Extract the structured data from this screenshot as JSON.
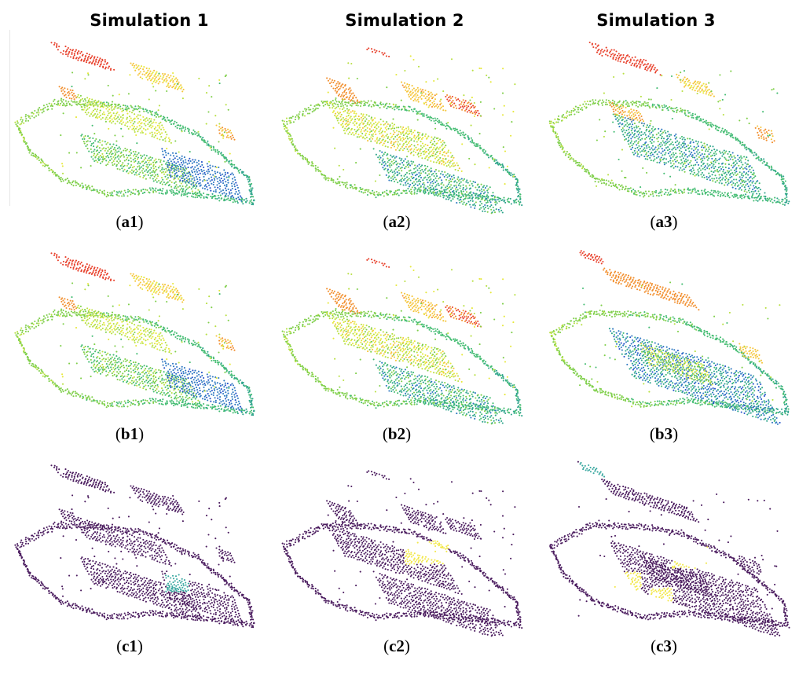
{
  "columns": [
    {
      "title": "Simulation 1"
    },
    {
      "title": "Simulation 2"
    },
    {
      "title": "Simulation 3"
    }
  ],
  "panels": [
    {
      "id": "a1",
      "caption": "a1",
      "row": "a",
      "col": 1,
      "palette": "spectral",
      "variant": 1,
      "highlight": "none"
    },
    {
      "id": "a2",
      "caption": "a2",
      "row": "a",
      "col": 2,
      "palette": "spectral",
      "variant": 2,
      "highlight": "none"
    },
    {
      "id": "a3",
      "caption": "a3",
      "row": "a",
      "col": 3,
      "palette": "spectral",
      "variant": 3,
      "highlight": "none"
    },
    {
      "id": "b1",
      "caption": "b1",
      "row": "b",
      "col": 1,
      "palette": "spectral",
      "variant": 1,
      "highlight": "none"
    },
    {
      "id": "b2",
      "caption": "b2",
      "row": "b",
      "col": 2,
      "palette": "spectral",
      "variant": 2,
      "highlight": "none"
    },
    {
      "id": "b3",
      "caption": "b3",
      "row": "b",
      "col": 3,
      "palette": "spectral",
      "variant": 4,
      "highlight": "none"
    },
    {
      "id": "c1",
      "caption": "c1",
      "row": "c",
      "col": 1,
      "palette": "purple",
      "variant": 1,
      "highlight": "cyan-small"
    },
    {
      "id": "c2",
      "caption": "c2",
      "row": "c",
      "col": 2,
      "palette": "purple",
      "variant": 2,
      "highlight": "yellow-patch"
    },
    {
      "id": "c3",
      "caption": "c3",
      "row": "c",
      "col": 3,
      "palette": "purple",
      "variant": 5,
      "highlight": "yellow-multi-cyan-top"
    }
  ],
  "colors": {
    "purple": "#4a1b5e",
    "cyan": "#3aa8a0",
    "yellow": "#f2e84a",
    "spectral_red": "#e8412c",
    "spectral_orange": "#f28f2e",
    "spectral_yellow": "#e6e83a",
    "spectral_green": "#7fcf4a",
    "spectral_teal": "#2fa58c",
    "spectral_blue": "#2553c9"
  }
}
